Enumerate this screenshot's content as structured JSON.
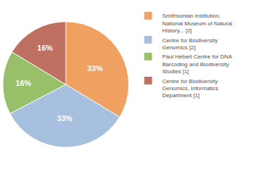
{
  "chart_data": {
    "type": "pie",
    "categories": [
      "Smithsonian Institution,\nNational Museum of Natural\nHistory... [2]",
      "Centre for Biodiversity\nGenomics [2]",
      "Paul Hebert Centre for DNA\nBarcoding and Biodiversity\nStudies [1]",
      "Centre for Biodiversity\nGenomics, Informatics\nDepartment [1]"
    ],
    "values": [
      33,
      33,
      16,
      16
    ],
    "value_labels": [
      "33%",
      "33%",
      "16%",
      "16%"
    ],
    "colors": [
      "#f0a060",
      "#a8c0e0",
      "#98c068",
      "#c07060"
    ],
    "data_labels": true,
    "legend": "right"
  }
}
